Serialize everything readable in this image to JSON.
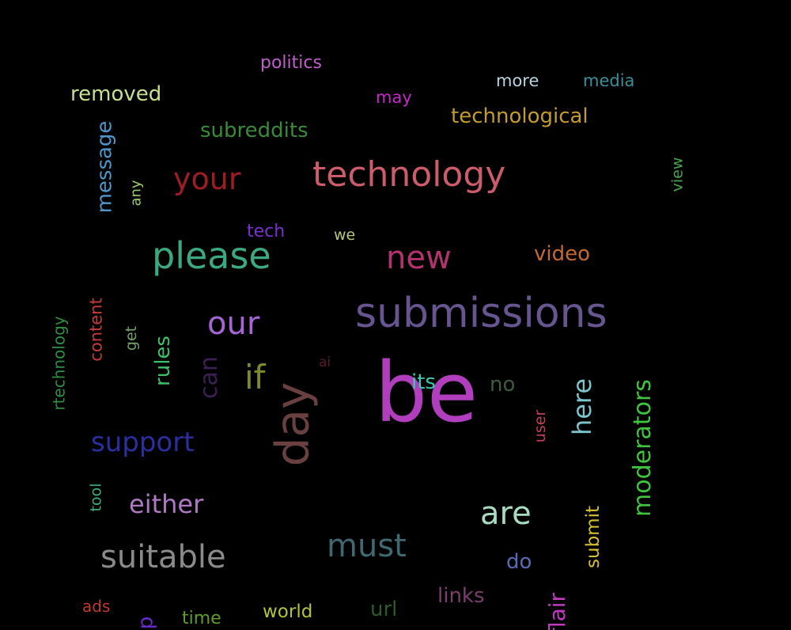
{
  "background": "#000000",
  "words": [
    {
      "text": "politics",
      "color": "#c05ec8"
    },
    {
      "text": "more",
      "color": "#b7d3e0"
    },
    {
      "text": "media",
      "color": "#3b8f9a"
    },
    {
      "text": "removed",
      "color": "#c6e08e"
    },
    {
      "text": "may",
      "color": "#c727c9"
    },
    {
      "text": "technological",
      "color": "#c39a2e"
    },
    {
      "text": "subreddits",
      "color": "#3a8a3a"
    },
    {
      "text": "message",
      "color": "#4f95c9"
    },
    {
      "text": "any",
      "color": "#9acb6a"
    },
    {
      "text": "your",
      "color": "#9e1c26"
    },
    {
      "text": "technology",
      "color": "#cc5b6c"
    },
    {
      "text": "view",
      "color": "#48a34e"
    },
    {
      "text": "tech",
      "color": "#7b2fcf"
    },
    {
      "text": "we",
      "color": "#b6c77a"
    },
    {
      "text": "please",
      "color": "#3ca883"
    },
    {
      "text": "new",
      "color": "#b2336e"
    },
    {
      "text": "video",
      "color": "#c46a30"
    },
    {
      "text": "submissions",
      "color": "#66558f"
    },
    {
      "text": "our",
      "color": "#a665d4"
    },
    {
      "text": "rtechnology",
      "color": "#2f8d43"
    },
    {
      "text": "content",
      "color": "#c73a3a"
    },
    {
      "text": "get",
      "color": "#73a06a"
    },
    {
      "text": "rules",
      "color": "#3ec06a"
    },
    {
      "text": "can",
      "color": "#3b1f55"
    },
    {
      "text": "if",
      "color": "#7e8a2a"
    },
    {
      "text": "ai",
      "color": "#5b1a2a"
    },
    {
      "text": "day",
      "color": "#6a3f3f"
    },
    {
      "text": "be",
      "color": "#b13fbd"
    },
    {
      "text": "its",
      "color": "#3ac9b1"
    },
    {
      "text": "no",
      "color": "#3f5a40"
    },
    {
      "text": "user",
      "color": "#c23f5a"
    },
    {
      "text": "here",
      "color": "#7cc3cc"
    },
    {
      "text": "moderators",
      "color": "#40c440"
    },
    {
      "text": "support",
      "color": "#2a2fa0"
    },
    {
      "text": "tool",
      "color": "#3aa880"
    },
    {
      "text": "either",
      "color": "#b078c4"
    },
    {
      "text": "are",
      "color": "#a7dcc0"
    },
    {
      "text": "submit",
      "color": "#d6c030"
    },
    {
      "text": "suitable",
      "color": "#8a8a8a"
    },
    {
      "text": "must",
      "color": "#3f6870"
    },
    {
      "text": "do",
      "color": "#5a6ab8"
    },
    {
      "text": "links",
      "color": "#7a3f6a"
    },
    {
      "text": "ads",
      "color": "#c03a2a"
    },
    {
      "text": "time",
      "color": "#5e9a2e"
    },
    {
      "text": "world",
      "color": "#b2c23a"
    },
    {
      "text": "url",
      "color": "#2d5a2d"
    },
    {
      "text": "flair",
      "color": "#c03ac0"
    },
    {
      "text": "p",
      "color": "#6a2ad0"
    }
  ]
}
